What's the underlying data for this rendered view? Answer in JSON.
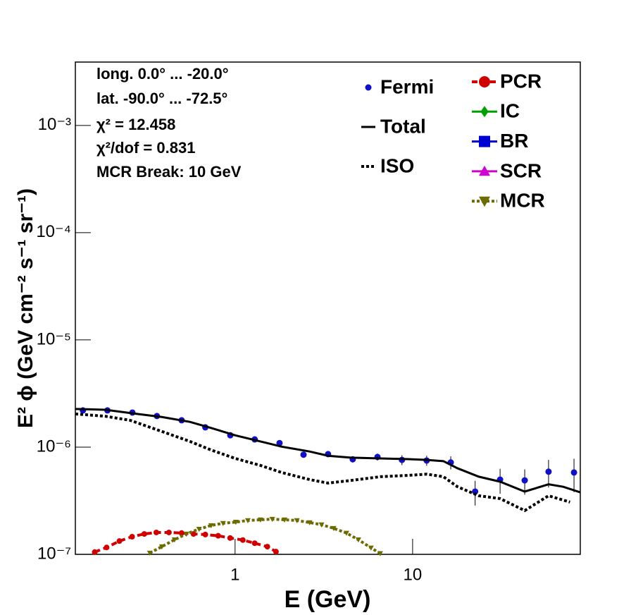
{
  "chart_data": {
    "type": "line",
    "xlabel": "E (GeV)",
    "ylabel": "E² ϕ (GeV cm⁻² s⁻¹ sr⁻¹)",
    "annotations": [
      "long. 0.0° ... -20.0°",
      "lat. -90.0° ... -72.5°",
      "χ² = 12.458",
      "χ²/dof = 0.831",
      "MCR Break: 10 GeV"
    ],
    "xlog": true,
    "ylog": true,
    "xlim": [
      0.126,
      88
    ],
    "ylim": [
      1e-07,
      0.0039
    ],
    "xticks": [
      1,
      10
    ],
    "yticks": [
      {
        "value": 1e-07,
        "label": "10⁻⁷"
      },
      {
        "value": 1e-06,
        "label": "10⁻⁶"
      },
      {
        "value": 1e-05,
        "label": "10⁻⁵"
      },
      {
        "value": 0.0001,
        "label": "10⁻⁴"
      },
      {
        "value": 0.001,
        "label": "10⁻³"
      }
    ],
    "series": [
      {
        "name": "Fermi",
        "color": "#1010c8",
        "style": "points",
        "marker": "circle",
        "x": [
          0.139,
          0.191,
          0.264,
          0.363,
          0.5,
          0.68,
          0.94,
          1.29,
          1.78,
          2.43,
          3.34,
          4.6,
          6.34,
          8.71,
          12.0,
          16.4,
          22.5,
          31.1,
          42.8,
          58.3,
          81.1
        ],
        "values": [
          2.2e-06,
          2.2e-06,
          2.1e-06,
          1.95e-06,
          1.78e-06,
          1.53e-06,
          1.29e-06,
          1.18e-06,
          1.09e-06,
          8.5e-07,
          8.6e-07,
          7.7e-07,
          8.1e-07,
          7.6e-07,
          7.5e-07,
          7.2e-07,
          3.85e-07,
          4.98e-07,
          4.9e-07,
          5.9e-07,
          5.8e-07
        ],
        "errors": [
          3e-08,
          3e-08,
          3e-08,
          3e-08,
          3e-08,
          3e-08,
          3e-08,
          3e-08,
          3e-08,
          3e-08,
          3e-08,
          5e-08,
          6e-08,
          8e-08,
          8e-08,
          1e-07,
          1e-07,
          1.3e-07,
          1.3e-07,
          1.7e-07,
          2e-07
        ]
      },
      {
        "name": "Total",
        "color": "#000000",
        "style": "solid",
        "x": [
          0.126,
          0.186,
          0.268,
          0.387,
          0.557,
          0.733,
          1,
          1.39,
          1.83,
          2.63,
          3.34,
          4.55,
          6.57,
          9.47,
          12.0,
          14.9,
          17.9,
          23.6,
          31.1,
          42.8,
          58.3,
          70.5,
          88
        ],
        "values": [
          2.27e-06,
          2.23e-06,
          2.06e-06,
          1.91e-06,
          1.72e-06,
          1.51e-06,
          1.29e-06,
          1.13e-06,
          1.01e-06,
          9.1e-07,
          8.3e-07,
          7.97e-07,
          7.85e-07,
          7.73e-07,
          7.6e-07,
          7.4e-07,
          6.35e-07,
          5.3e-07,
          4.76e-07,
          3.85e-07,
          4.5e-07,
          4.27e-07,
          3.79e-07
        ]
      },
      {
        "name": "ISO",
        "color": "#000000",
        "style": "dotted",
        "x": [
          0.126,
          0.186,
          0.256,
          0.387,
          0.557,
          0.733,
          1,
          1.39,
          1.83,
          2.63,
          3.34,
          4.55,
          6.57,
          9.47,
          12.0,
          14.9,
          17.9,
          23.6,
          31.1,
          42.8,
          58.3,
          77
        ],
        "values": [
          2.04e-06,
          1.94e-06,
          1.78e-06,
          1.4e-06,
          1.13e-06,
          9.4e-07,
          7.85e-07,
          6.75e-07,
          5.8e-07,
          4.98e-07,
          4.62e-07,
          4.9e-07,
          5.3e-07,
          5.45e-07,
          5.6e-07,
          5.3e-07,
          4.27e-07,
          3.52e-07,
          3.31e-07,
          2.56e-07,
          3.52e-07,
          3.07e-07
        ]
      },
      {
        "name": "PCR",
        "color": "#d00000",
        "style": "dashed",
        "marker": "circle",
        "x": [
          0.162,
          0.189,
          0.223,
          0.263,
          0.308,
          0.36,
          0.424,
          0.5,
          0.583,
          0.68,
          0.803,
          0.938,
          1.106,
          1.29,
          1.52,
          1.7
        ],
        "values": [
          1.05e-07,
          1.16e-07,
          1.33e-07,
          1.46e-07,
          1.55e-07,
          1.6e-07,
          1.6e-07,
          1.58e-07,
          1.55e-07,
          1.53e-07,
          1.49e-07,
          1.42e-07,
          1.36e-07,
          1.27e-07,
          1.18e-07,
          1.06e-07
        ]
      },
      {
        "name": "IC",
        "color": "#00a000",
        "style": "solid",
        "marker": "diamond",
        "x": [],
        "values": []
      },
      {
        "name": "BR",
        "color": "#0000d0",
        "style": "solid",
        "marker": "square",
        "x": [],
        "values": []
      },
      {
        "name": "SCR",
        "color": "#d000d0",
        "style": "solid",
        "marker": "triangle-up",
        "x": [],
        "values": []
      },
      {
        "name": "MCR",
        "color": "#6b6b00",
        "style": "dotted",
        "marker": "triangle-down",
        "x": [
          0.331,
          0.387,
          0.456,
          0.532,
          0.627,
          0.733,
          0.856,
          1.01,
          1.18,
          1.39,
          1.62,
          1.9,
          2.23,
          2.63,
          3.07,
          3.59,
          4.24,
          4.95,
          5.83,
          6.57
        ],
        "values": [
          1.03e-07,
          1.18e-07,
          1.37e-07,
          1.55e-07,
          1.72e-07,
          1.86e-07,
          1.95e-07,
          2e-07,
          2.07e-07,
          2.1e-07,
          2.13e-07,
          2.1e-07,
          2.07e-07,
          1.98e-07,
          1.89e-07,
          1.75e-07,
          1.58e-07,
          1.37e-07,
          1.15e-07,
          1.02e-07
        ]
      }
    ]
  }
}
